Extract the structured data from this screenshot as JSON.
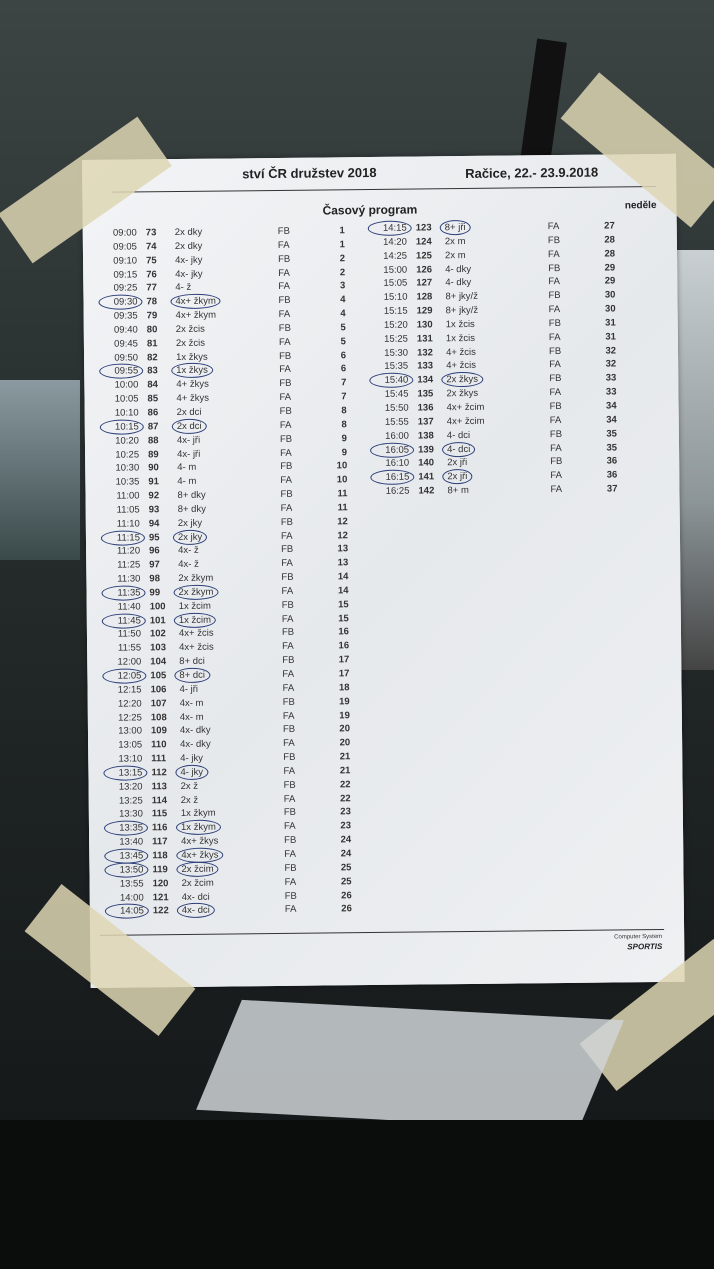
{
  "header": {
    "title": "ství ČR družstev 2018",
    "place_date": "Račice, 22.- 23.9.2018"
  },
  "program": {
    "heading": "Časový program",
    "day": "neděle"
  },
  "left_rows": [
    [
      "09:00",
      "73",
      "2x dky",
      "FB",
      "1",
      false
    ],
    [
      "09:05",
      "74",
      "2x dky",
      "FA",
      "1",
      false
    ],
    [
      "09:10",
      "75",
      "4x- jky",
      "FB",
      "2",
      false
    ],
    [
      "09:15",
      "76",
      "4x- jky",
      "FA",
      "2",
      false
    ],
    [
      "09:25",
      "77",
      "4- ž",
      "FA",
      "3",
      false
    ],
    [
      "09:30",
      "78",
      "4x+ žkym",
      "FB",
      "4",
      true
    ],
    [
      "09:35",
      "79",
      "4x+ žkym",
      "FA",
      "4",
      false
    ],
    [
      "09:40",
      "80",
      "2x žcis",
      "FB",
      "5",
      false
    ],
    [
      "09:45",
      "81",
      "2x žcis",
      "FA",
      "5",
      false
    ],
    [
      "09:50",
      "82",
      "1x žkys",
      "FB",
      "6",
      false
    ],
    [
      "09:55",
      "83",
      "1x žkys",
      "FA",
      "6",
      true
    ],
    [
      "10:00",
      "84",
      "4+ žkys",
      "FB",
      "7",
      false
    ],
    [
      "10:05",
      "85",
      "4+ žkys",
      "FA",
      "7",
      false
    ],
    [
      "10:10",
      "86",
      "2x dci",
      "FB",
      "8",
      false
    ],
    [
      "10:15",
      "87",
      "2x dci",
      "FA",
      "8",
      true
    ],
    [
      "10:20",
      "88",
      "4x- jři",
      "FB",
      "9",
      false
    ],
    [
      "10:25",
      "89",
      "4x- jři",
      "FA",
      "9",
      false
    ],
    [
      "10:30",
      "90",
      "4- m",
      "FB",
      "10",
      false
    ],
    [
      "10:35",
      "91",
      "4- m",
      "FA",
      "10",
      false
    ],
    [
      "11:00",
      "92",
      "8+ dky",
      "FB",
      "11",
      false
    ],
    [
      "11:05",
      "93",
      "8+ dky",
      "FA",
      "11",
      false
    ],
    [
      "11:10",
      "94",
      "2x jky",
      "FB",
      "12",
      false
    ],
    [
      "11:15",
      "95",
      "2x jky",
      "FA",
      "12",
      true
    ],
    [
      "11:20",
      "96",
      "4x- ž",
      "FB",
      "13",
      false
    ],
    [
      "11:25",
      "97",
      "4x- ž",
      "FA",
      "13",
      false
    ],
    [
      "11:30",
      "98",
      "2x žkym",
      "FB",
      "14",
      false
    ],
    [
      "11:35",
      "99",
      "2x žkym",
      "FA",
      "14",
      true
    ],
    [
      "11:40",
      "100",
      "1x žcim",
      "FB",
      "15",
      false
    ],
    [
      "11:45",
      "101",
      "1x žcim",
      "FA",
      "15",
      true
    ],
    [
      "11:50",
      "102",
      "4x+ žcis",
      "FB",
      "16",
      false
    ],
    [
      "11:55",
      "103",
      "4x+ žcis",
      "FA",
      "16",
      false
    ],
    [
      "12:00",
      "104",
      "8+ dci",
      "FB",
      "17",
      false
    ],
    [
      "12:05",
      "105",
      "8+ dci",
      "FA",
      "17",
      true
    ],
    [
      "12:15",
      "106",
      "4- jři",
      "FA",
      "18",
      false
    ],
    [
      "12:20",
      "107",
      "4x- m",
      "FB",
      "19",
      false
    ],
    [
      "12:25",
      "108",
      "4x- m",
      "FA",
      "19",
      false
    ],
    [
      "13:00",
      "109",
      "4x- dky",
      "FB",
      "20",
      false
    ],
    [
      "13:05",
      "110",
      "4x- dky",
      "FA",
      "20",
      false
    ],
    [
      "13:10",
      "111",
      "4- jky",
      "FB",
      "21",
      false
    ],
    [
      "13:15",
      "112",
      "4- jky",
      "FA",
      "21",
      true
    ],
    [
      "13:20",
      "113",
      "2x ž",
      "FB",
      "22",
      false
    ],
    [
      "13:25",
      "114",
      "2x ž",
      "FA",
      "22",
      false
    ],
    [
      "13:30",
      "115",
      "1x žkym",
      "FB",
      "23",
      false
    ],
    [
      "13:35",
      "116",
      "1x žkym",
      "FA",
      "23",
      true
    ],
    [
      "13:40",
      "117",
      "4x+ žkys",
      "FB",
      "24",
      false
    ],
    [
      "13:45",
      "118",
      "4x+ žkys",
      "FA",
      "24",
      true
    ],
    [
      "13:50",
      "119",
      "2x žcim",
      "FB",
      "25",
      true
    ],
    [
      "13:55",
      "120",
      "2x žcim",
      "FA",
      "25",
      false
    ],
    [
      "14:00",
      "121",
      "4x- dci",
      "FB",
      "26",
      false
    ],
    [
      "14:05",
      "122",
      "4x- dci",
      "FA",
      "26",
      true
    ]
  ],
  "right_rows": [
    [
      "14:15",
      "123",
      "8+ jři",
      "FA",
      "27",
      true
    ],
    [
      "14:20",
      "124",
      "2x m",
      "FB",
      "28",
      false
    ],
    [
      "14:25",
      "125",
      "2x m",
      "FA",
      "28",
      false
    ],
    [
      "15:00",
      "126",
      "4- dky",
      "FB",
      "29",
      false
    ],
    [
      "15:05",
      "127",
      "4- dky",
      "FA",
      "29",
      false
    ],
    [
      "15:10",
      "128",
      "8+ jky/ž",
      "FB",
      "30",
      false
    ],
    [
      "15:15",
      "129",
      "8+ jky/ž",
      "FA",
      "30",
      false
    ],
    [
      "15:20",
      "130",
      "1x žcis",
      "FB",
      "31",
      false
    ],
    [
      "15:25",
      "131",
      "1x žcis",
      "FA",
      "31",
      false
    ],
    [
      "15:30",
      "132",
      "4+ žcis",
      "FB",
      "32",
      false
    ],
    [
      "15:35",
      "133",
      "4+ žcis",
      "FA",
      "32",
      false
    ],
    [
      "15:40",
      "134",
      "2x žkys",
      "FB",
      "33",
      true
    ],
    [
      "15:45",
      "135",
      "2x žkys",
      "FA",
      "33",
      false
    ],
    [
      "15:50",
      "136",
      "4x+ žcim",
      "FB",
      "34",
      false
    ],
    [
      "15:55",
      "137",
      "4x+ žcim",
      "FA",
      "34",
      false
    ],
    [
      "16:00",
      "138",
      "4- dci",
      "FB",
      "35",
      false
    ],
    [
      "16:05",
      "139",
      "4- dci",
      "FA",
      "35",
      true
    ],
    [
      "16:10",
      "140",
      "2x jři",
      "FB",
      "36",
      false
    ],
    [
      "16:15",
      "141",
      "2x jři",
      "FA",
      "36",
      true
    ],
    [
      "16:25",
      "142",
      "8+ m",
      "FA",
      "37",
      false
    ]
  ],
  "footer": {
    "system": "Computer System",
    "brand": "SPORTIS"
  },
  "colors": {
    "paper": "#eef0f2",
    "pen_circle": "#2c3e78",
    "tape": "#ded6b4"
  }
}
